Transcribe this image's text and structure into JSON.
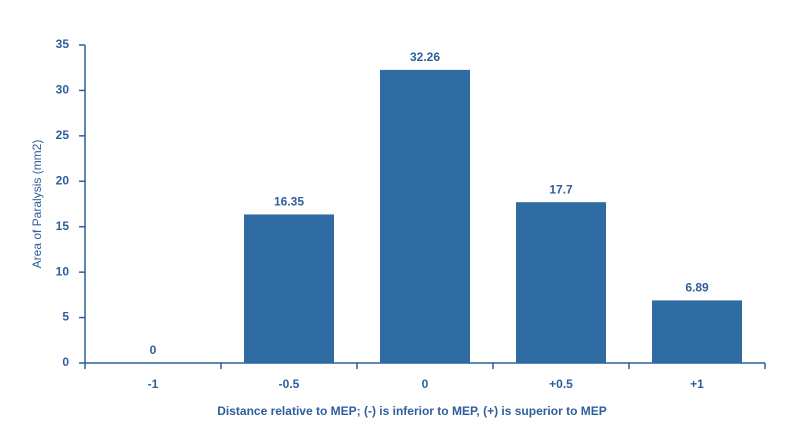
{
  "chart_data": {
    "type": "bar",
    "x_label": "Distance relative to MEP; (-) is inferior to MEP, (+) is superior to MEP",
    "y_label": "Area of Paralysis (mm2)",
    "categories": [
      "-1",
      "-0.5",
      "0",
      "+0.5",
      "+1"
    ],
    "values": [
      0,
      16.35,
      32.26,
      17.7,
      6.89
    ],
    "color": "#2f6ca3",
    "ylim": [
      0,
      35
    ],
    "yticks": [
      0,
      5,
      10,
      15,
      20,
      25,
      30,
      35
    ]
  }
}
